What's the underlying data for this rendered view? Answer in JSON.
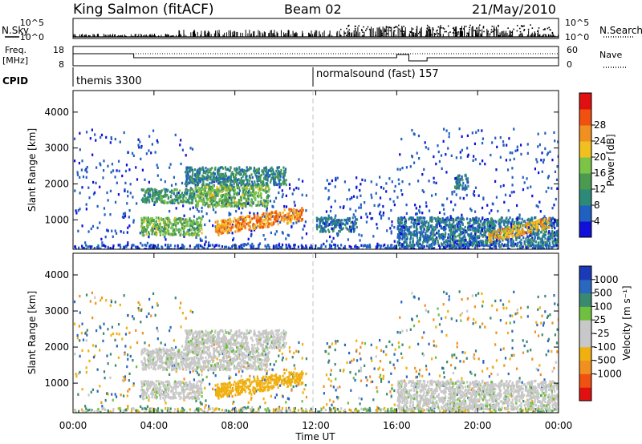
{
  "header": {
    "station": "King Salmon (fitACF)",
    "beam": "Beam 02",
    "date": "21/May/2010"
  },
  "side_labels": {
    "nsky": "N.Sky",
    "freq_top": "Freq.",
    "freq_unit": "[MHz]",
    "cpid": "CPID",
    "nsearch": "N.Search",
    "nave": "Nave"
  },
  "cpid_segments": [
    {
      "label": "themis 3300"
    },
    {
      "label": "normalsound (fast) 157"
    }
  ],
  "noise_axis": {
    "ticks_left": [
      "10^5",
      "10^0"
    ],
    "ticks_right": [
      "10^5",
      "10^0"
    ]
  },
  "freq_axis": {
    "ticks_left": [
      "18",
      "8"
    ],
    "ticks_right": [
      "60",
      "0"
    ]
  },
  "colors": {
    "power_scale": [
      "#1010d8",
      "#2060c0",
      "#2e8a78",
      "#4a9a50",
      "#7cc448",
      "#f0c020",
      "#f09020",
      "#f05010",
      "#e01010"
    ],
    "velocity_scale": [
      "#e01010",
      "#f05010",
      "#f09020",
      "#f0b010",
      "#c8c8c8",
      "#c8c8c8",
      "#70c040",
      "#3a8a70",
      "#2a68c0",
      "#1a3ab8"
    ]
  },
  "chart_data": [
    {
      "type": "heatmap",
      "panel": "power",
      "title": "",
      "xlabel": "",
      "ylabel": "Slant Range [km]",
      "xlim": [
        "00:00",
        "00:00"
      ],
      "ylim": [
        180,
        4600
      ],
      "x_ticks": [
        "00:00",
        "04:00",
        "08:00",
        "12:00",
        "16:00",
        "20:00",
        "00:00"
      ],
      "y_ticks": [
        1000,
        2000,
        3000,
        4000
      ],
      "colorbar": {
        "label": "Power [dB]",
        "ticks": [
          4,
          8,
          12,
          16,
          20,
          24,
          28
        ]
      },
      "regions": [
        {
          "t_start": "03:20",
          "t_end": "06:20",
          "range_start": 600,
          "range_end": 1100,
          "power_db": 16
        },
        {
          "t_start": "07:00",
          "t_end": "11:20",
          "range_start": 600,
          "range_end": 1000,
          "power_db": 26
        },
        {
          "t_start": "03:20",
          "t_end": "06:00",
          "range_start": 1500,
          "range_end": 1900,
          "power_db": 12
        },
        {
          "t_start": "06:00",
          "t_end": "09:40",
          "range_start": 1400,
          "range_end": 2000,
          "power_db": 16
        },
        {
          "t_start": "05:30",
          "t_end": "10:30",
          "range_start": 2000,
          "range_end": 2500,
          "power_db": 10
        },
        {
          "t_start": "12:00",
          "t_end": "14:00",
          "range_start": 700,
          "range_end": 1100,
          "power_db": 8
        },
        {
          "t_start": "16:00",
          "t_end": "24:00",
          "range_start": 300,
          "range_end": 1100,
          "power_db": 8
        },
        {
          "t_start": "20:30",
          "t_end": "23:30",
          "range_start": 400,
          "range_end": 700,
          "power_db": 24
        },
        {
          "t_start": "18:50",
          "t_end": "19:30",
          "range_start": 1900,
          "range_end": 2300,
          "power_db": 8
        }
      ]
    },
    {
      "type": "heatmap",
      "panel": "velocity",
      "title": "",
      "xlabel": "Time UT",
      "ylabel": "Slant Range [km]",
      "xlim": [
        "00:00",
        "00:00"
      ],
      "ylim": [
        180,
        4600
      ],
      "x_ticks": [
        "00:00",
        "04:00",
        "08:00",
        "12:00",
        "16:00",
        "20:00",
        "00:00"
      ],
      "y_ticks": [
        1000,
        2000,
        3000,
        4000
      ],
      "colorbar": {
        "label": "Velocity [m s⁻¹]",
        "ticks": [
          1000,
          500,
          100,
          25,
          -25,
          -100,
          -500,
          -1000
        ]
      },
      "regions": [
        {
          "t_start": "03:20",
          "t_end": "06:20",
          "range_start": 600,
          "range_end": 1100,
          "velocity": 0
        },
        {
          "t_start": "07:00",
          "t_end": "11:20",
          "range_start": 600,
          "range_end": 1000,
          "velocity": -200
        },
        {
          "t_start": "03:20",
          "t_end": "09:40",
          "range_start": 1400,
          "range_end": 2000,
          "velocity": 0
        },
        {
          "t_start": "05:30",
          "t_end": "10:30",
          "range_start": 2000,
          "range_end": 2500,
          "velocity": 0
        },
        {
          "t_start": "16:00",
          "t_end": "24:00",
          "range_start": 300,
          "range_end": 1100,
          "velocity": 0
        }
      ]
    }
  ]
}
